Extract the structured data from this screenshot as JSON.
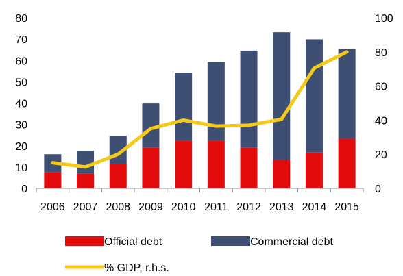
{
  "chart_data": {
    "type": "bar",
    "stacked": true,
    "categories": [
      "2006",
      "2007",
      "2008",
      "2009",
      "2010",
      "2011",
      "2012",
      "2013",
      "2014",
      "2015"
    ],
    "series": [
      {
        "name": "Official debt",
        "type": "bar",
        "axis": "left",
        "color": "#e30b0b",
        "values": [
          7.5,
          7,
          11.5,
          19,
          22.3,
          22.3,
          19,
          13.5,
          16.8,
          23.3
        ]
      },
      {
        "name": "Commercial debt",
        "type": "bar",
        "axis": "left",
        "color": "#3f4f74",
        "values": [
          8.5,
          10.6,
          13.2,
          20.8,
          32,
          36.9,
          45.6,
          59.7,
          53.1,
          42
        ]
      },
      {
        "name": "% GDP, r.h.s.",
        "type": "line",
        "axis": "right",
        "color": "#f5c917",
        "values": [
          15,
          12.5,
          20,
          35,
          40,
          36.5,
          37,
          40.5,
          70.5,
          80
        ]
      }
    ],
    "yaxis_left": {
      "min": 0,
      "max": 80,
      "ticks": [
        "0",
        "10",
        "20",
        "30",
        "40",
        "50",
        "60",
        "70",
        "80"
      ]
    },
    "yaxis_right": {
      "min": 0,
      "max": 100,
      "ticks": [
        "0",
        "20",
        "40",
        "60",
        "80",
        "100"
      ]
    },
    "grid": false,
    "legend_position": "bottom"
  }
}
